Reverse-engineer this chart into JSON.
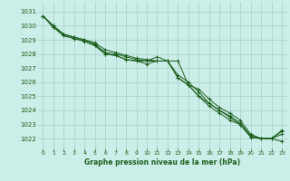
{
  "title": "Graphe pression niveau de la mer (hPa)",
  "bg_color": "#cceee8",
  "grid_color": "#aad4cc",
  "line_color": "#1a5c1a",
  "xlim": [
    -0.5,
    23.5
  ],
  "ylim": [
    1021.3,
    1031.7
  ],
  "xticks": [
    0,
    1,
    2,
    3,
    4,
    5,
    6,
    7,
    8,
    9,
    10,
    11,
    12,
    13,
    14,
    15,
    16,
    17,
    18,
    19,
    20,
    21,
    22,
    23
  ],
  "yticks": [
    1022,
    1023,
    1024,
    1025,
    1026,
    1027,
    1028,
    1029,
    1030,
    1031
  ],
  "series": [
    [
      1030.7,
      1029.9,
      1029.3,
      1029.1,
      1028.9,
      1028.6,
      1028.0,
      1027.9,
      1027.6,
      1027.5,
      1027.3,
      1027.5,
      1027.5,
      1026.3,
      1025.8,
      1025.0,
      1024.3,
      1023.8,
      1023.3,
      1023.0,
      1022.1,
      1022.0,
      1022.0,
      1022.3
    ],
    [
      1030.7,
      1029.9,
      1029.3,
      1029.1,
      1028.9,
      1028.6,
      1028.0,
      1027.9,
      1027.6,
      1027.5,
      1027.5,
      1027.5,
      1027.5,
      1026.5,
      1026.0,
      1025.3,
      1024.5,
      1024.0,
      1023.6,
      1023.1,
      1022.2,
      1022.0,
      1022.0,
      1022.6
    ],
    [
      1030.7,
      1030.0,
      1029.4,
      1029.2,
      1029.0,
      1028.7,
      1028.1,
      1028.0,
      1027.8,
      1027.6,
      1027.5,
      1027.8,
      1027.5,
      1027.5,
      1025.8,
      1025.5,
      1024.8,
      1024.2,
      1023.8,
      1023.3,
      1022.3,
      1022.0,
      1022.0,
      1021.8
    ],
    [
      1030.7,
      1030.0,
      1029.4,
      1029.2,
      1029.0,
      1028.8,
      1028.3,
      1028.1,
      1027.9,
      1027.7,
      1027.6,
      1027.5,
      1027.5,
      1026.3,
      1025.8,
      1025.0,
      1024.5,
      1024.0,
      1023.5,
      1023.0,
      1022.1,
      1022.0,
      1022.0,
      1022.5
    ]
  ]
}
